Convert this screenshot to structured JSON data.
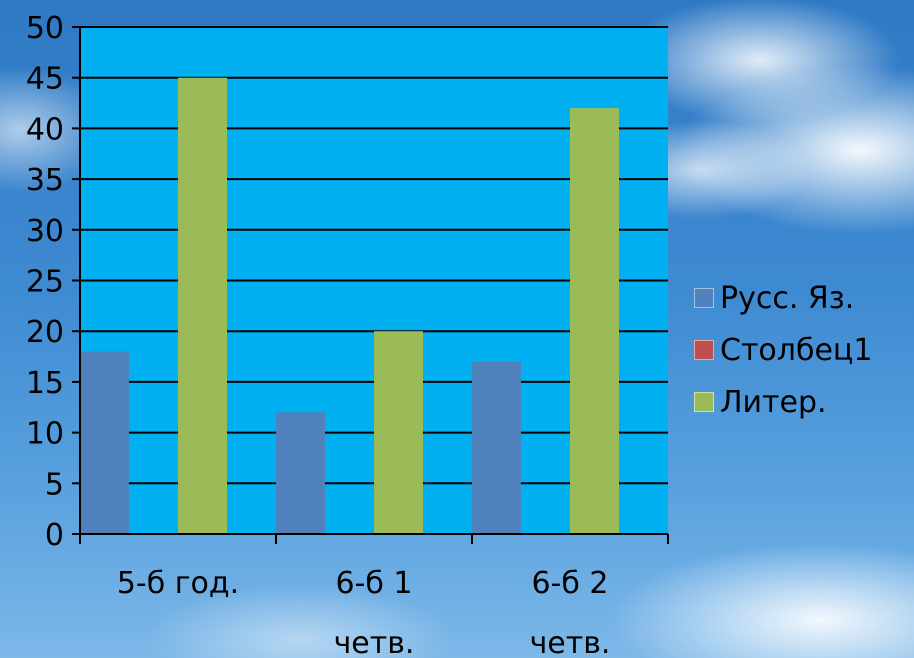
{
  "chart_data": {
    "type": "bar",
    "categories": [
      [
        "5-б год."
      ],
      [
        "6-б 1",
        "четв."
      ],
      [
        "6-б 2",
        "четв."
      ]
    ],
    "series": [
      {
        "name": "Русс. Яз.",
        "values": [
          18,
          12,
          17
        ],
        "color": "#4f81bd"
      },
      {
        "name": "Столбец1",
        "values": [
          0,
          0,
          0
        ],
        "color": "#c0504d"
      },
      {
        "name": "Литер.",
        "values": [
          45,
          20,
          42
        ],
        "color": "#9bbb59"
      }
    ],
    "ylim": [
      0,
      50
    ],
    "yticks": [
      0,
      5,
      10,
      15,
      20,
      25,
      30,
      35,
      40,
      45,
      50
    ],
    "grid": true,
    "plot_background": "#00b0f0",
    "legend_position": "right"
  },
  "legend": {
    "items": [
      "Русс. Яз.",
      "Столбец1",
      "Литер."
    ]
  }
}
